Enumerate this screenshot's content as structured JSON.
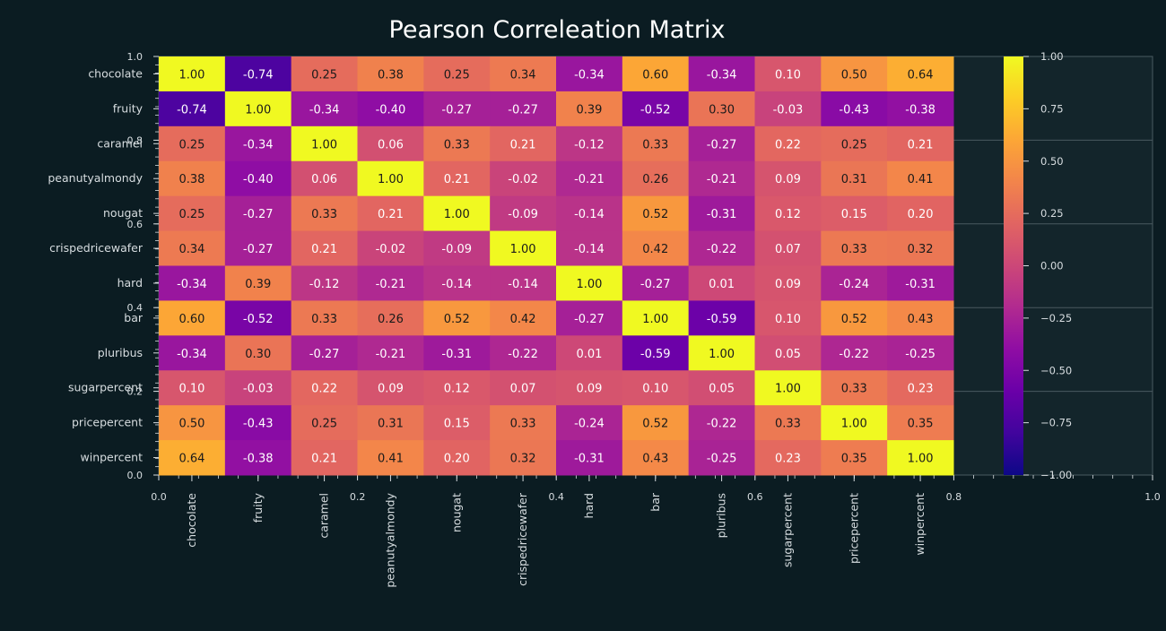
{
  "chart_data": {
    "type": "heatmap",
    "title": "Pearson Correleation Matrix",
    "rows": [
      "chocolate",
      "fruity",
      "caramel",
      "peanutyalmondy",
      "nougat",
      "crispedricewafer",
      "hard",
      "bar",
      "pluribus",
      "sugarpercent",
      "pricepercent",
      "winpercent"
    ],
    "columns": [
      "chocolate",
      "fruity",
      "caramel",
      "peanutyalmondy",
      "nougat",
      "crispedricewafer",
      "hard",
      "bar",
      "pluribus",
      "sugarpercent",
      "pricepercent",
      "winpercent"
    ],
    "values": [
      [
        1.0,
        -0.74,
        0.25,
        0.38,
        0.25,
        0.34,
        -0.34,
        0.6,
        -0.34,
        0.1,
        0.5,
        0.64
      ],
      [
        -0.74,
        1.0,
        -0.34,
        -0.4,
        -0.27,
        -0.27,
        0.39,
        -0.52,
        0.3,
        -0.03,
        -0.43,
        -0.38
      ],
      [
        0.25,
        -0.34,
        1.0,
        0.06,
        0.33,
        0.21,
        -0.12,
        0.33,
        -0.27,
        0.22,
        0.25,
        0.21
      ],
      [
        0.38,
        -0.4,
        0.06,
        1.0,
        0.21,
        -0.02,
        -0.21,
        0.26,
        -0.21,
        0.09,
        0.31,
        0.41
      ],
      [
        0.25,
        -0.27,
        0.33,
        0.21,
        1.0,
        -0.09,
        -0.14,
        0.52,
        -0.31,
        0.12,
        0.15,
        0.2
      ],
      [
        0.34,
        -0.27,
        0.21,
        -0.02,
        -0.09,
        1.0,
        -0.14,
        0.42,
        -0.22,
        0.07,
        0.33,
        0.32
      ],
      [
        -0.34,
        0.39,
        -0.12,
        -0.21,
        -0.14,
        -0.14,
        1.0,
        -0.27,
        0.01,
        0.09,
        -0.24,
        -0.31
      ],
      [
        0.6,
        -0.52,
        0.33,
        0.26,
        0.52,
        0.42,
        -0.27,
        1.0,
        -0.59,
        0.1,
        0.52,
        0.43
      ],
      [
        -0.34,
        0.3,
        -0.27,
        -0.21,
        -0.31,
        -0.22,
        0.01,
        -0.59,
        1.0,
        0.05,
        -0.22,
        -0.25
      ],
      [
        0.1,
        -0.03,
        0.22,
        0.09,
        0.12,
        0.07,
        0.09,
        0.1,
        0.05,
        1.0,
        0.33,
        0.23
      ],
      [
        0.5,
        -0.43,
        0.25,
        0.31,
        0.15,
        0.33,
        -0.24,
        0.52,
        -0.22,
        0.33,
        1.0,
        0.35
      ],
      [
        0.64,
        -0.38,
        0.21,
        0.41,
        0.2,
        0.32,
        -0.31,
        0.43,
        -0.25,
        0.23,
        0.35,
        1.0
      ]
    ],
    "value_range": [
      -1.0,
      1.0
    ],
    "colormap": "plasma",
    "colorbar_ticks": [
      "1.00",
      "0.75",
      "0.50",
      "0.25",
      "0.00",
      "−0.25",
      "−0.50",
      "−0.75",
      "−1.00"
    ],
    "background_axis": {
      "xticks": [
        "0.0",
        "0.2",
        "0.4",
        "0.6",
        "0.8",
        "1.0"
      ],
      "yticks": [
        "0.0",
        "0.2",
        "0.4",
        "0.6",
        "0.8",
        "1.0"
      ],
      "grid": true
    },
    "colors": {
      "background": "#0b1c22",
      "plot_background": "#13252b",
      "text": "#d7dde0",
      "title": "#ffffff",
      "grid": "#4a5a60"
    }
  }
}
